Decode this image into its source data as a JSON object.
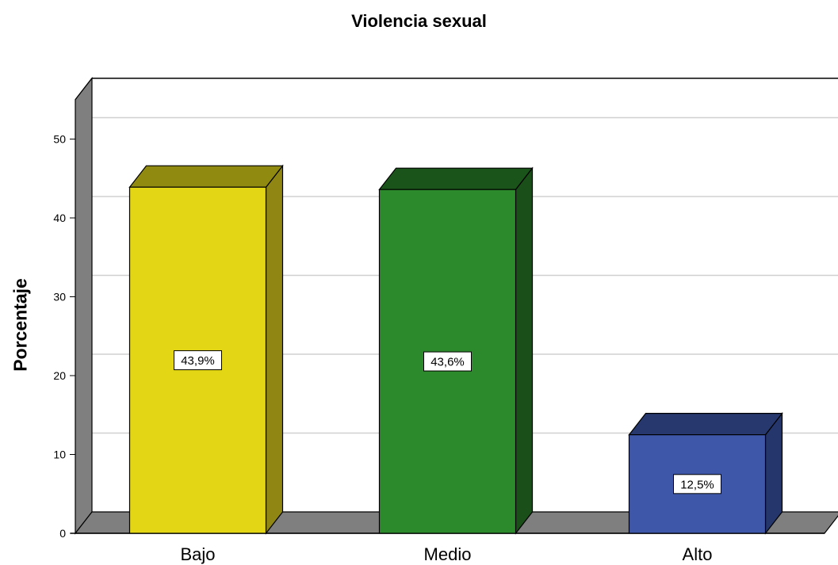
{
  "chart_data": {
    "type": "bar",
    "title": "Violencia sexual",
    "xlabel": "",
    "ylabel": "Porcentaje",
    "categories": [
      "Bajo",
      "Medio",
      "Alto"
    ],
    "values": [
      43.9,
      43.6,
      12.5
    ],
    "data_labels": [
      "43,9%",
      "43,6%",
      "12,5%"
    ],
    "ylim": [
      0,
      55
    ],
    "yticks": [
      0,
      10,
      20,
      30,
      40,
      50
    ],
    "grid": true,
    "legend": "none",
    "style": "3d-bars",
    "colors": {
      "bars": [
        "#e3d614",
        "#2c8a2c",
        "#3f57a8"
      ],
      "bar_sides": [
        "#8f8613",
        "#1a4f1a",
        "#24366c"
      ],
      "bar_tops": [
        "#918a10",
        "#1a541a",
        "#26386e"
      ],
      "wall": "#7f7f7f",
      "gridline": "#d0d0d0"
    }
  }
}
